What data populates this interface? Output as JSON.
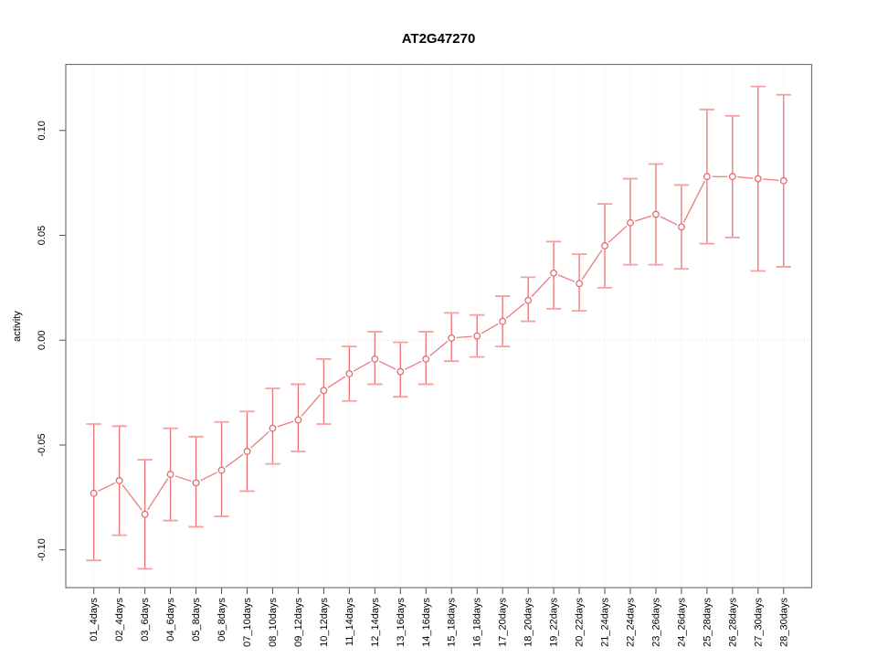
{
  "chart_data": {
    "type": "scatter",
    "title": "AT2G47270",
    "xlabel": "",
    "ylabel": "activity",
    "categories": [
      "01_4days",
      "02_4days",
      "03_6days",
      "04_6days",
      "05_8days",
      "06_8days",
      "07_10days",
      "08_10days",
      "09_12days",
      "10_12days",
      "11_14days",
      "12_14days",
      "13_16days",
      "14_16days",
      "15_18days",
      "16_18days",
      "17_20days",
      "18_20days",
      "19_22days",
      "20_22days",
      "21_24days",
      "22_24days",
      "23_26days",
      "24_26days",
      "25_28days",
      "26_28days",
      "27_30days",
      "28_30days"
    ],
    "series": [
      {
        "name": "activity",
        "values": [
          -0.073,
          -0.067,
          -0.083,
          -0.064,
          -0.068,
          -0.062,
          -0.053,
          -0.042,
          -0.038,
          -0.024,
          -0.016,
          -0.009,
          -0.015,
          -0.009,
          0.001,
          0.002,
          0.009,
          0.019,
          0.032,
          0.027,
          0.045,
          0.056,
          0.06,
          0.054,
          0.078,
          0.078,
          0.077,
          0.076
        ],
        "err_high": [
          -0.04,
          -0.041,
          -0.057,
          -0.042,
          -0.046,
          -0.039,
          -0.034,
          -0.023,
          -0.021,
          -0.009,
          -0.003,
          0.004,
          -0.001,
          0.004,
          0.013,
          0.012,
          0.021,
          0.03,
          0.047,
          0.041,
          0.065,
          0.077,
          0.084,
          0.074,
          0.11,
          0.107,
          0.121,
          0.117
        ],
        "err_low": [
          -0.105,
          -0.093,
          -0.109,
          -0.086,
          -0.089,
          -0.084,
          -0.072,
          -0.059,
          -0.053,
          -0.04,
          -0.029,
          -0.021,
          -0.027,
          -0.021,
          -0.01,
          -0.008,
          -0.003,
          0.009,
          0.015,
          0.014,
          0.025,
          0.036,
          0.036,
          0.034,
          0.046,
          0.049,
          0.033,
          0.035
        ]
      }
    ],
    "ylim": [
      -0.118,
      0.1315
    ],
    "yticks": [
      -0.1,
      -0.05,
      0.0,
      0.05,
      0.1
    ],
    "ytick_labels": [
      "-0.10",
      "-0.05",
      "0.00",
      "0.05",
      "0.10"
    ],
    "legend": "none",
    "grid": {
      "vertical_dotted_per_category": true,
      "zero_line_dotted": true
    },
    "colors": {
      "point": "#e96a6a",
      "line": "#ed7b7b",
      "error_bar": "#ea7272",
      "error_cap": "#f2a0a0",
      "grid": "#e5e5e5",
      "zero_line": "#dcdcdc",
      "box": "#737373",
      "tick": "#4d4d4d",
      "text": "#000000",
      "background": "#ffffff"
    }
  }
}
